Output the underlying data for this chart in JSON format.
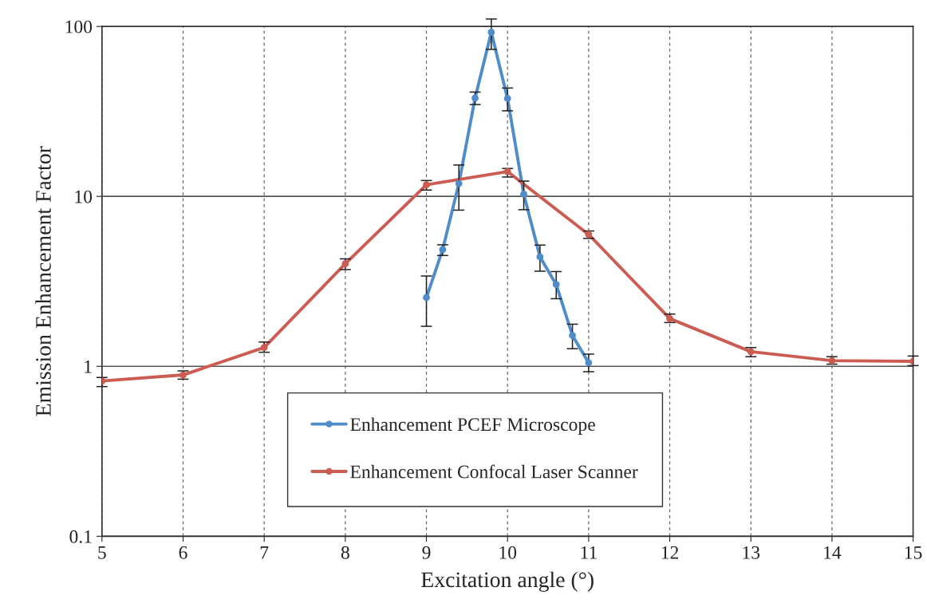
{
  "chart_data": {
    "type": "line",
    "xlabel": "Excitation angle (°)",
    "ylabel": "Emission Enhancement Factor",
    "xlim": [
      5,
      15
    ],
    "xticks": [
      5,
      6,
      7,
      8,
      9,
      10,
      11,
      12,
      13,
      14,
      15
    ],
    "ylim": [
      0.1,
      100
    ],
    "yticks": [
      0.1,
      1,
      10,
      100
    ],
    "log": "y",
    "grid": true,
    "legend": "bottom",
    "marker": "circle",
    "line_style": "solid",
    "series": [
      {
        "name": "Enhancement PCEF Microscope",
        "color": "#4f8cc9",
        "x": [
          9.0,
          9.2,
          9.4,
          9.6,
          9.8,
          10.0,
          10.2,
          10.4,
          10.6,
          10.8,
          11.0
        ],
        "values": [
          2.54,
          4.86,
          11.9,
          37.9,
          92.4,
          37.7,
          10.3,
          4.41,
          3.03,
          1.52,
          1.05
        ],
        "errors": [
          [
            1.72,
            3.4
          ],
          [
            4.49,
            5.19
          ],
          [
            8.3,
            15.3
          ],
          [
            34.7,
            41.1
          ],
          [
            73.3,
            110.6
          ],
          [
            31.9,
            43.4
          ],
          [
            8.35,
            12.3
          ],
          [
            3.63,
            5.17
          ],
          [
            2.5,
            3.61
          ],
          [
            1.27,
            1.77
          ],
          [
            0.93,
            1.18
          ]
        ]
      },
      {
        "name": "Enhancement Confocal Laser Scanner",
        "color": "#cc5c52",
        "x": [
          5,
          6,
          7,
          8,
          9,
          10,
          11,
          12,
          13,
          14,
          15
        ],
        "values": [
          0.82,
          0.89,
          1.29,
          4.02,
          11.7,
          14.0,
          5.97,
          1.91,
          1.22,
          1.08,
          1.07
        ],
        "errors": [
          [
            0.76,
            0.86
          ],
          [
            0.84,
            0.94
          ],
          [
            1.21,
            1.39
          ],
          [
            3.71,
            4.29
          ],
          [
            10.9,
            12.4
          ],
          [
            13.0,
            14.6
          ],
          [
            5.66,
            6.26
          ],
          [
            1.81,
            2.03
          ],
          [
            1.14,
            1.29
          ],
          [
            1.03,
            1.14
          ],
          [
            1.01,
            1.15
          ]
        ]
      }
    ]
  }
}
